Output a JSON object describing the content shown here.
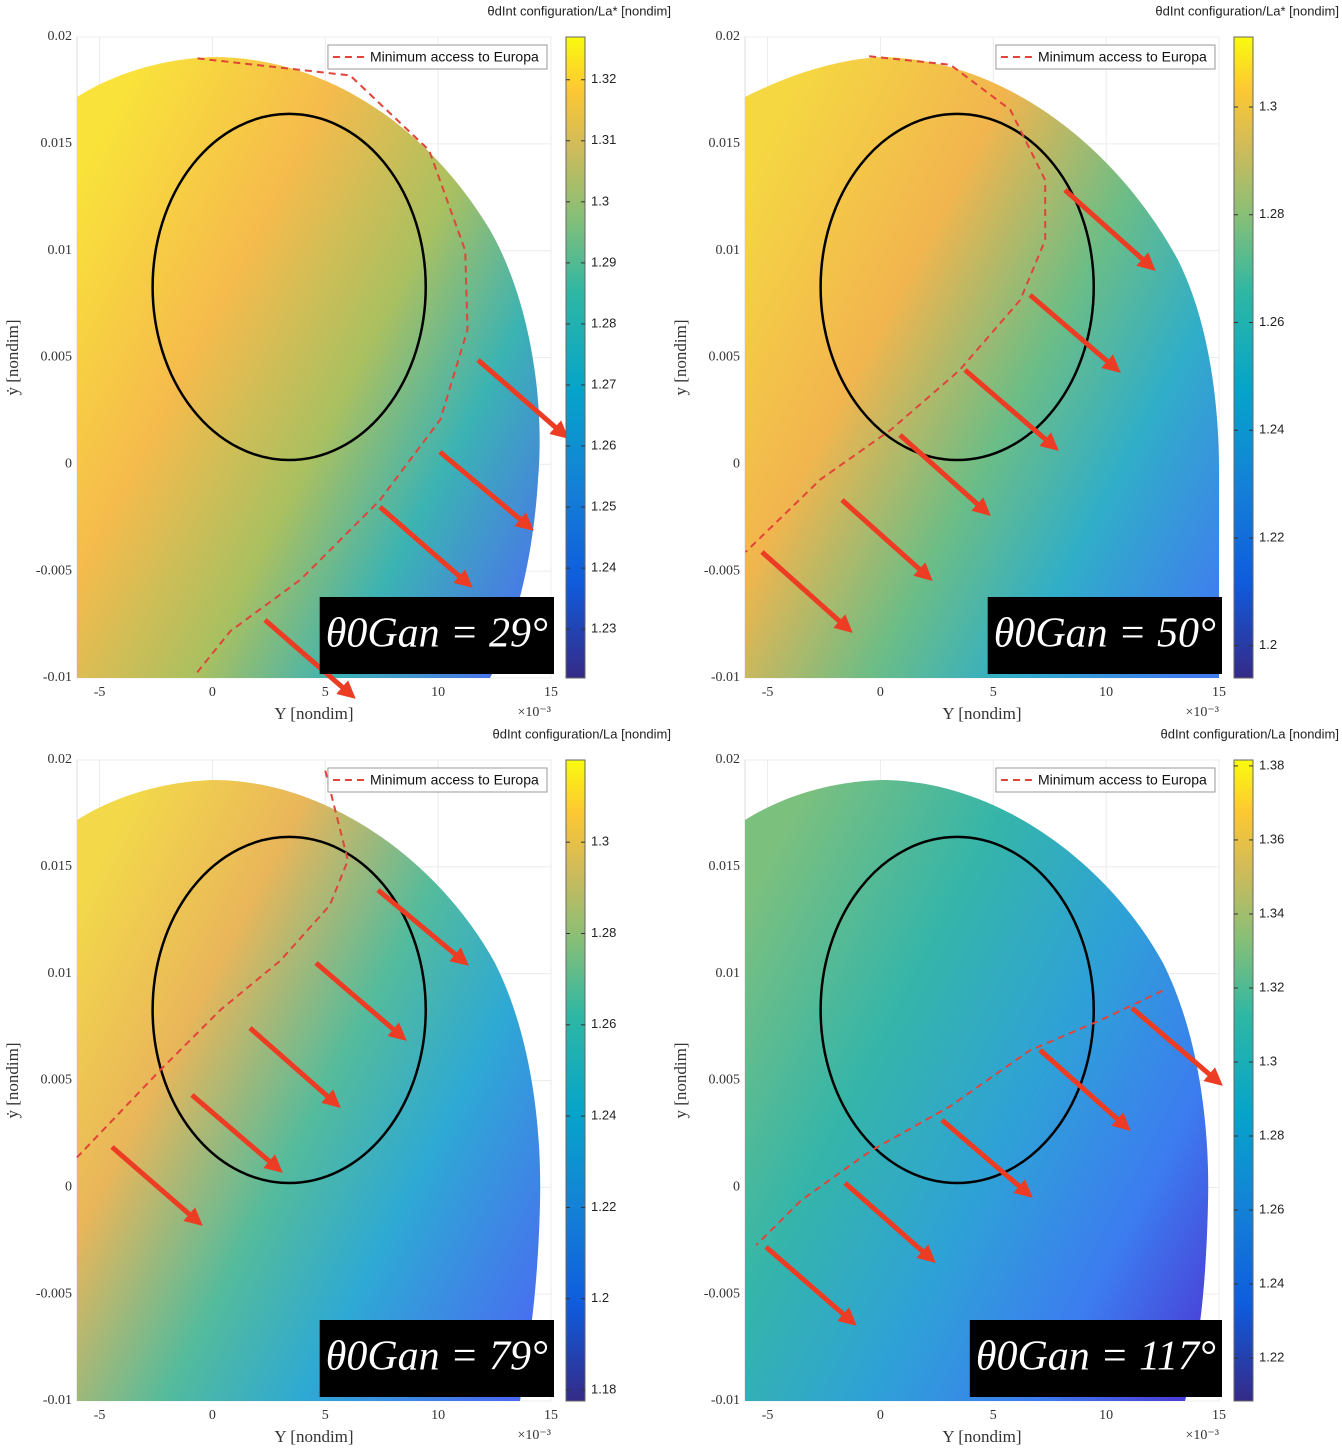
{
  "chart_data": [
    {
      "type": "heatmap",
      "colorbar_label": "θdInt configuration/La* [nondim]",
      "annotation": "θ0Gan = 29°",
      "xlabel": "Y [nondim]",
      "ylabel": "ẏ [nondim]",
      "x_exponent": "×10⁻³",
      "xlim": [
        -6,
        15
      ],
      "xticks": [
        -5,
        0,
        5,
        10,
        15
      ],
      "ylim": [
        -0.01,
        0.02
      ],
      "yticks": [
        -0.01,
        -0.005,
        0,
        0.005,
        0.01,
        0.015,
        0.02
      ],
      "clim": [
        1.222,
        1.327
      ],
      "cticks": [
        1.23,
        1.24,
        1.25,
        1.26,
        1.27,
        1.28,
        1.29,
        1.3,
        1.31,
        1.32
      ],
      "grid": true,
      "legend": "top-right",
      "series": [
        {
          "name": "Minimum access to Europa",
          "color": "#e0443a",
          "x": [
            -0.66,
            6.1,
            9.6,
            11.2,
            11.3,
            10.1,
            7.4,
            3.9,
            0.8,
            -0.8
          ],
          "y": [
            0.019,
            0.0182,
            0.0147,
            0.01,
            0.0063,
            0.0021,
            -0.0017,
            -0.0054,
            -0.0078,
            -0.0099
          ]
        }
      ],
      "ellipse": {
        "center": [
          3.4,
          0.0083
        ],
        "radii": [
          6.05,
          0.0081
        ],
        "color": "#000000"
      }
    },
    {
      "type": "heatmap",
      "colorbar_label": "θdInt configuration/La* [nondim]",
      "annotation": "θ0Gan = 50°",
      "xlabel": "Y [nondim]",
      "ylabel": "y [nondim]",
      "x_exponent": "×10⁻³",
      "xlim": [
        -6,
        15
      ],
      "xticks": [
        -5,
        0,
        5,
        10,
        15
      ],
      "ylim": [
        -0.01,
        0.02
      ],
      "yticks": [
        -0.01,
        -0.005,
        0,
        0.005,
        0.01,
        0.015,
        0.02
      ],
      "clim": [
        1.194,
        1.313
      ],
      "cticks": [
        1.2,
        1.22,
        1.24,
        1.26,
        1.28,
        1.3
      ],
      "grid": true,
      "legend": "top-right",
      "series": [
        {
          "name": "Minimum access to Europa",
          "color": "#e0443a",
          "x": [
            -0.5,
            3.1,
            5.75,
            7.3,
            7.3,
            6.2,
            3.5,
            0.44,
            -2.65,
            -5.97
          ],
          "y": [
            0.0191,
            0.0187,
            0.0166,
            0.0133,
            0.0105,
            0.0077,
            0.0044,
            0.0016,
            -0.0007,
            -0.0041
          ]
        }
      ],
      "ellipse": {
        "center": [
          3.4,
          0.0083
        ],
        "radii": [
          6.05,
          0.0081
        ],
        "color": "#000000"
      }
    },
    {
      "type": "heatmap",
      "colorbar_label": "θdInt configuration/La [nondim]",
      "annotation": "θ0Gan = 79°",
      "xlabel": "Y [nondim]",
      "ylabel": "ẏ [nondim]",
      "x_exponent": "×10⁻³",
      "xlim": [
        -6,
        15
      ],
      "xticks": [
        -5,
        0,
        5,
        10,
        15
      ],
      "ylim": [
        -0.01,
        0.02
      ],
      "yticks": [
        -0.01,
        -0.005,
        0,
        0.005,
        0.01,
        0.015,
        0.02
      ],
      "clim": [
        1.1776,
        1.318
      ],
      "cticks": [
        1.18,
        1.2,
        1.22,
        1.24,
        1.26,
        1.28,
        1.3
      ],
      "grid": true,
      "legend": "top-right",
      "series": [
        {
          "name": "Minimum access to Europa",
          "color": "#e0443a",
          "x": [
            5,
            6,
            5.2,
            3,
            0.35,
            -2.3,
            -6
          ],
          "y": [
            0.0195,
            0.0153,
            0.0132,
            0.0106,
            0.0083,
            0.0055,
            0.0014
          ]
        }
      ],
      "ellipse": {
        "center": [
          3.4,
          0.0083
        ],
        "radii": [
          6.05,
          0.0081
        ],
        "color": "#000000"
      }
    },
    {
      "type": "heatmap",
      "colorbar_label": "θdInt configuration/La [nondim]",
      "annotation": "θ0Gan = 117°",
      "xlabel": "Y [nondim]",
      "ylabel": "y [nondim]",
      "x_exponent": "×10⁻³",
      "xlim": [
        -6,
        15
      ],
      "xticks": [
        -5,
        0,
        5,
        10,
        15
      ],
      "ylim": [
        -0.01,
        0.02
      ],
      "yticks": [
        -0.01,
        -0.005,
        0,
        0.005,
        0.01,
        0.015,
        0.02
      ],
      "clim": [
        1.2084,
        1.3816
      ],
      "cticks": [
        1.22,
        1.24,
        1.26,
        1.28,
        1.3,
        1.32,
        1.34,
        1.36,
        1.38
      ],
      "grid": true,
      "legend": "top-right",
      "series": [
        {
          "name": "Minimum access to Europa",
          "color": "#e0443a",
          "x": [
            12.5,
            9.7,
            6.6,
            3.1,
            -0.44,
            -3.5,
            -5.5
          ],
          "y": [
            0.0092,
            0.0078,
            0.0064,
            0.0038,
            0.0017,
            -0.0006,
            -0.0027
          ]
        }
      ],
      "ellipse": {
        "center": [
          3.4,
          0.0083
        ],
        "radii": [
          6.05,
          0.0081
        ],
        "color": "#000000"
      }
    }
  ]
}
